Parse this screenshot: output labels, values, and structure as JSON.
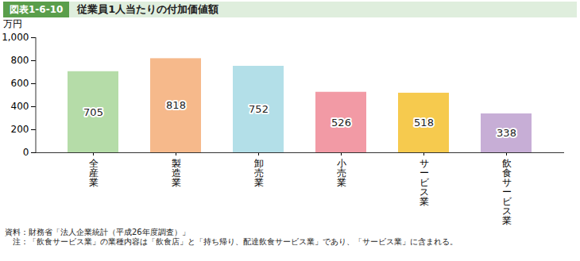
{
  "chart_data": {
    "type": "bar",
    "figure_label": "図表1-6-10",
    "title": "従業員1人当たりの付加価値額",
    "y_label": "万円",
    "categories": [
      "全産業",
      "製造業",
      "卸売業",
      "小売業",
      "サービス業",
      "飲食サービス業"
    ],
    "values": [
      705,
      818,
      752,
      526,
      518,
      338
    ],
    "colors": [
      "#b5dca8",
      "#f6b98b",
      "#b3dfe8",
      "#f29aa5",
      "#f6ca4e",
      "#c7aed6"
    ],
    "ylim": [
      0,
      1000
    ],
    "yticks": [
      0,
      200,
      400,
      600,
      800,
      {
        "value": 1000,
        "label": "1,000"
      }
    ],
    "grid": false,
    "data_labels": true,
    "notes": [
      "資料：財務省「法人企業統計（平成26年度調査）」",
      "　注：「飲食サービス業」の業種内容は「飲食店」と「持ち帰り、配達飲食サービス業」であり、「サービス業」に含まれる。"
    ]
  }
}
